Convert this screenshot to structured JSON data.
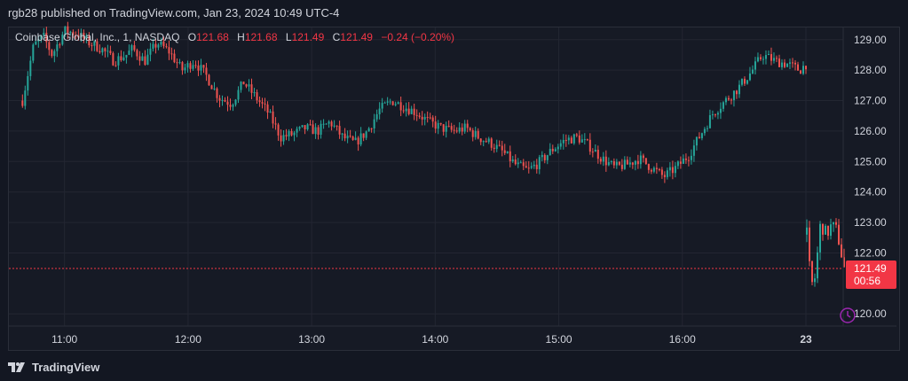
{
  "header": {
    "published": "rgb28 published on TradingView.com, Jan 23, 2024 10:49 UTC-4"
  },
  "legend": {
    "symbol": "Coinbase Global, Inc., 1, NASDAQ",
    "o_label": "O",
    "o_value": "121.68",
    "h_label": "H",
    "h_value": "121.68",
    "l_label": "L",
    "l_value": "121.49",
    "c_label": "C",
    "c_value": "121.49",
    "change": "−0.24 (−0.20%)"
  },
  "price_tag": {
    "price": "121.49",
    "countdown": "00:56",
    "color": "#f23645"
  },
  "footer": {
    "brand": "TradingView"
  },
  "colors": {
    "up": "#26a69a",
    "down": "#ef5350",
    "grid": "#232632",
    "text": "#d1d4dc",
    "background": "#161a25"
  },
  "chart_data": {
    "type": "candlestick",
    "title": "Coinbase Global, Inc., 1, NASDAQ",
    "xlabel": "",
    "ylabel": "",
    "ylim": [
      119.6,
      129.4
    ],
    "y_ticks": [
      "129.00",
      "128.00",
      "127.00",
      "126.00",
      "125.00",
      "124.00",
      "123.00",
      "122.00",
      "120.00"
    ],
    "x_ticks": [
      "11:00",
      "12:00",
      "13:00",
      "14:00",
      "15:00",
      "16:00",
      "23"
    ],
    "last_price": 121.49,
    "grid": true,
    "path": [
      [
        10.66,
        127.0
      ],
      [
        10.75,
        128.8
      ],
      [
        10.83,
        129.1
      ],
      [
        10.9,
        128.5
      ],
      [
        11.0,
        129.3
      ],
      [
        11.1,
        129.2
      ],
      [
        11.2,
        128.9
      ],
      [
        11.3,
        128.7
      ],
      [
        11.4,
        128.3
      ],
      [
        11.5,
        128.5
      ],
      [
        11.55,
        128.7
      ],
      [
        11.65,
        128.3
      ],
      [
        11.75,
        128.9
      ],
      [
        11.85,
        128.6
      ],
      [
        11.95,
        128.0
      ],
      [
        12.05,
        128.3
      ],
      [
        12.15,
        127.8
      ],
      [
        12.25,
        127.1
      ],
      [
        12.35,
        126.9
      ],
      [
        12.45,
        127.6
      ],
      [
        12.55,
        127.1
      ],
      [
        12.65,
        126.6
      ],
      [
        12.75,
        125.8
      ],
      [
        12.85,
        125.9
      ],
      [
        12.95,
        126.1
      ],
      [
        13.05,
        126.0
      ],
      [
        13.15,
        126.3
      ],
      [
        13.25,
        125.8
      ],
      [
        13.35,
        125.6
      ],
      [
        13.45,
        126.0
      ],
      [
        13.55,
        126.7
      ],
      [
        13.65,
        127.0
      ],
      [
        13.75,
        126.8
      ],
      [
        13.85,
        126.6
      ],
      [
        13.95,
        126.3
      ],
      [
        14.05,
        126.1
      ],
      [
        14.15,
        126.0
      ],
      [
        14.25,
        126.1
      ],
      [
        14.35,
        125.8
      ],
      [
        14.45,
        125.6
      ],
      [
        14.55,
        125.3
      ],
      [
        14.65,
        124.9
      ],
      [
        14.75,
        124.7
      ],
      [
        14.85,
        125.0
      ],
      [
        14.95,
        125.4
      ],
      [
        15.05,
        125.7
      ],
      [
        15.15,
        125.8
      ],
      [
        15.25,
        125.5
      ],
      [
        15.35,
        125.1
      ],
      [
        15.45,
        124.8
      ],
      [
        15.55,
        124.9
      ],
      [
        15.65,
        125.1
      ],
      [
        15.75,
        124.8
      ],
      [
        15.85,
        124.5
      ],
      [
        15.95,
        124.8
      ],
      [
        16.05,
        125.2
      ],
      [
        16.15,
        125.9
      ],
      [
        16.25,
        126.6
      ],
      [
        16.35,
        127.0
      ],
      [
        16.45,
        127.4
      ],
      [
        16.55,
        127.9
      ],
      [
        16.65,
        128.5
      ],
      [
        16.75,
        128.3
      ],
      [
        16.85,
        128.2
      ],
      [
        16.95,
        128.0
      ],
      [
        17.0,
        128.2
      ]
    ],
    "session2": [
      [
        0.0,
        122.6
      ],
      [
        0.03,
        120.9
      ],
      [
        0.06,
        121.2
      ],
      [
        0.1,
        123.0
      ],
      [
        0.14,
        122.6
      ],
      [
        0.18,
        122.9
      ],
      [
        0.22,
        122.7
      ],
      [
        0.27,
        121.5
      ]
    ]
  }
}
